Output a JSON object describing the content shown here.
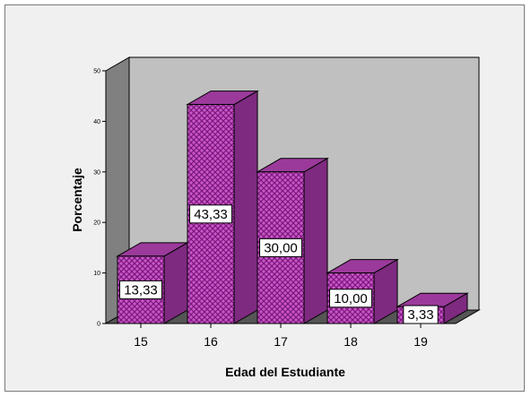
{
  "chart_data": {
    "type": "bar",
    "categories": [
      "15",
      "16",
      "17",
      "18",
      "19"
    ],
    "values": [
      13.33,
      43.33,
      30.0,
      10.0,
      3.33
    ],
    "data_labels": [
      "13,33",
      "43,33",
      "30,00",
      "10,00",
      "3,33"
    ],
    "yticks": [
      "0",
      "10",
      "20",
      "30",
      "40",
      "50"
    ],
    "xlabel": "Edad del Estudiante",
    "ylabel": "Porcentaje",
    "ylim": [
      0,
      50
    ],
    "three_d": true,
    "grid": false,
    "legend": "none",
    "colors": {
      "bar_front": "#cc55cc",
      "bar_pattern": "#7a1a7a",
      "bar_top": "#9b3a9b",
      "bar_side": "#7e2a80",
      "back_wall": "#c0c0c0",
      "left_wall": "#808080",
      "floor": "#555555",
      "frame_bg": "#f0f0f0"
    }
  }
}
